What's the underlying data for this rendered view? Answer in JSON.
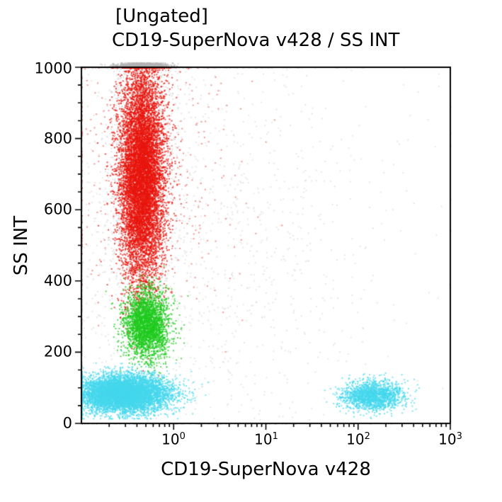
{
  "chart_data": {
    "type": "scatter",
    "gate_label": "[Ungated]",
    "title": "CD19-SuperNova v428 / SS INT",
    "xlabel": "CD19-SuperNova v428",
    "ylabel": "SS INT",
    "x_scale": "log",
    "x_range_log10": [
      -1,
      3
    ],
    "y_range": [
      0,
      1000
    ],
    "y_tick_values": [
      0,
      200,
      400,
      600,
      800,
      1000
    ],
    "y_tick_labels": [
      "0",
      "200",
      "400",
      "600",
      "800",
      "1000"
    ],
    "y_minor_step": 50,
    "x_tick_base": "10",
    "x_tick_exponents": [
      "0",
      "1",
      "2",
      "3"
    ],
    "x_tick_values_log10": [
      0,
      1,
      2,
      3
    ],
    "grid": false,
    "legend": "none",
    "populations": [
      {
        "name": "debris-background",
        "color": "#c9c9c9",
        "alpha": 0.45,
        "size": 2,
        "count": 1800,
        "x_mean_log10": 0.0,
        "x_sd_log10": 1.1,
        "y_mean": 500,
        "y_sd": 330
      },
      {
        "name": "debris-column",
        "color": "#c6c6c6",
        "alpha": 0.5,
        "size": 2,
        "count": 2500,
        "x_mean_log10": -0.35,
        "x_sd_log10": 0.16,
        "y_mean": 750,
        "y_sd": 230
      },
      {
        "name": "saturated-top-pileup",
        "color": "#b5b5b5",
        "alpha": 0.55,
        "size": 2,
        "count": 1600,
        "x_mean_log10": -0.35,
        "x_sd_log10": 0.13,
        "y_mean": 1006,
        "y_sd": 4,
        "y_clamp": [
          1001,
          1014
        ]
      },
      {
        "name": "granulocytes-red-sparse",
        "color": "#e8150d",
        "alpha": 0.45,
        "size": 2,
        "count": 450,
        "x_mean_log10": -0.3,
        "x_sd_log10": 0.5,
        "y_mean": 700,
        "y_sd": 170
      },
      {
        "name": "granulocytes-red",
        "color": "#e8150d",
        "alpha": 0.75,
        "size": 2,
        "count": 9000,
        "x_mean_log10": -0.35,
        "x_sd_log10": 0.12,
        "y_mean": 700,
        "y_sd": 155
      },
      {
        "name": "monocytes-green",
        "color": "#1ecb1e",
        "alpha": 0.75,
        "size": 2,
        "count": 2600,
        "x_mean_log10": -0.3,
        "x_sd_log10": 0.12,
        "y_mean": 280,
        "y_sd": 48
      },
      {
        "name": "lymphocytes-cyan-negative",
        "color": "#45d7ec",
        "alpha": 0.7,
        "size": 2,
        "count": 7000,
        "x_mean_log10": -0.55,
        "x_sd_log10": 0.25,
        "y_mean": 85,
        "y_sd": 26,
        "y_clamp": [
          15,
          1000
        ]
      },
      {
        "name": "cd19-positive-cyan",
        "color": "#45d7ec",
        "alpha": 0.7,
        "size": 2,
        "count": 1800,
        "x_mean_log10": 2.15,
        "x_sd_log10": 0.16,
        "y_mean": 80,
        "y_sd": 20,
        "y_clamp": [
          15,
          1000
        ]
      }
    ]
  }
}
